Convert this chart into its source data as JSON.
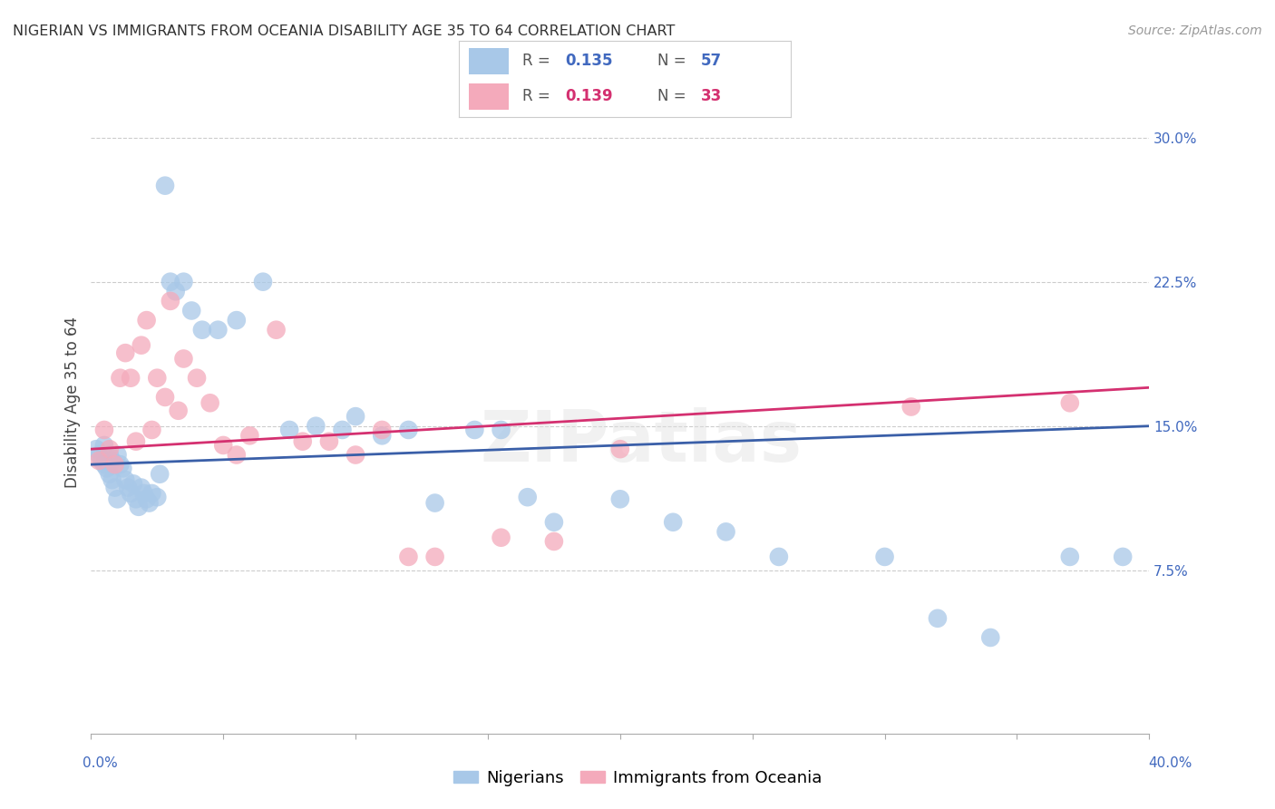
{
  "title": "NIGERIAN VS IMMIGRANTS FROM OCEANIA DISABILITY AGE 35 TO 64 CORRELATION CHART",
  "source": "Source: ZipAtlas.com",
  "ylabel": "Disability Age 35 to 64",
  "ytick_labels": [
    "7.5%",
    "15.0%",
    "22.5%",
    "30.0%"
  ],
  "ytick_values": [
    0.075,
    0.15,
    0.225,
    0.3
  ],
  "xlim": [
    0.0,
    0.4
  ],
  "ylim": [
    -0.01,
    0.335
  ],
  "legend_label1": "Nigerians",
  "legend_label2": "Immigrants from Oceania",
  "R1": 0.135,
  "N1": 57,
  "R2": 0.139,
  "N2": 33,
  "color1": "#A8C8E8",
  "color2": "#F4AABB",
  "line_color1": "#3A5FA8",
  "line_color2": "#D43070",
  "watermark": "ZIPatlas",
  "nigerian_x": [
    0.002,
    0.003,
    0.004,
    0.005,
    0.005,
    0.006,
    0.007,
    0.007,
    0.008,
    0.008,
    0.009,
    0.01,
    0.01,
    0.011,
    0.012,
    0.013,
    0.014,
    0.015,
    0.016,
    0.017,
    0.018,
    0.019,
    0.02,
    0.021,
    0.022,
    0.023,
    0.025,
    0.026,
    0.028,
    0.03,
    0.032,
    0.035,
    0.038,
    0.042,
    0.048,
    0.055,
    0.065,
    0.075,
    0.085,
    0.095,
    0.1,
    0.11,
    0.12,
    0.13,
    0.145,
    0.155,
    0.165,
    0.175,
    0.2,
    0.22,
    0.24,
    0.26,
    0.3,
    0.32,
    0.34,
    0.37,
    0.39
  ],
  "nigerian_y": [
    0.138,
    0.135,
    0.132,
    0.14,
    0.13,
    0.128,
    0.135,
    0.125,
    0.132,
    0.122,
    0.118,
    0.135,
    0.112,
    0.13,
    0.128,
    0.122,
    0.118,
    0.115,
    0.12,
    0.112,
    0.108,
    0.118,
    0.115,
    0.112,
    0.11,
    0.115,
    0.113,
    0.125,
    0.275,
    0.225,
    0.22,
    0.225,
    0.21,
    0.2,
    0.2,
    0.205,
    0.225,
    0.148,
    0.15,
    0.148,
    0.155,
    0.145,
    0.148,
    0.11,
    0.148,
    0.148,
    0.113,
    0.1,
    0.112,
    0.1,
    0.095,
    0.082,
    0.082,
    0.05,
    0.04,
    0.082,
    0.082
  ],
  "oceania_x": [
    0.003,
    0.005,
    0.007,
    0.009,
    0.011,
    0.013,
    0.015,
    0.017,
    0.019,
    0.021,
    0.023,
    0.025,
    0.028,
    0.03,
    0.033,
    0.035,
    0.04,
    0.045,
    0.05,
    0.055,
    0.06,
    0.07,
    0.08,
    0.09,
    0.1,
    0.11,
    0.12,
    0.13,
    0.155,
    0.175,
    0.2,
    0.31,
    0.37
  ],
  "oceania_y": [
    0.132,
    0.148,
    0.138,
    0.13,
    0.175,
    0.188,
    0.175,
    0.142,
    0.192,
    0.205,
    0.148,
    0.175,
    0.165,
    0.215,
    0.158,
    0.185,
    0.175,
    0.162,
    0.14,
    0.135,
    0.145,
    0.2,
    0.142,
    0.142,
    0.135,
    0.148,
    0.082,
    0.082,
    0.092,
    0.09,
    0.138,
    0.16,
    0.162
  ],
  "line1_x0": 0.0,
  "line1_x1": 0.4,
  "line1_y0": 0.13,
  "line1_y1": 0.15,
  "line2_x0": 0.0,
  "line2_x1": 0.4,
  "line2_y0": 0.138,
  "line2_y1": 0.17
}
